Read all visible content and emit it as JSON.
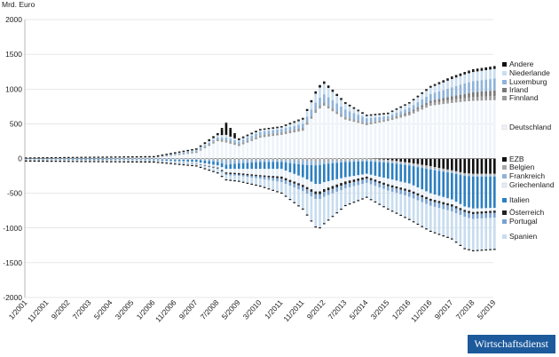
{
  "badge": "Wirtschaftsdienst",
  "chart_data": {
    "type": "area",
    "ylabel": "Mrd. Euro",
    "ylim": [
      -2000,
      2000
    ],
    "yticks": [
      2000,
      1500,
      1000,
      500,
      0,
      -500,
      -1000,
      -1500,
      -2000
    ],
    "xlabels": [
      "1/2001",
      "11/2001",
      "9/2002",
      "7/2003",
      "5/2004",
      "3/2005",
      "1/2006",
      "11/2006",
      "9/2007",
      "7/2008",
      "5/2009",
      "3/2010",
      "1/2011",
      "11/2011",
      "9/2012",
      "7/2013",
      "5/2014",
      "3/2015",
      "1/2016",
      "11/2016",
      "9/2017",
      "7/2018",
      "5/2019"
    ],
    "grid": true,
    "legend_position": "right",
    "legend_groups": [
      {
        "side": "positive",
        "entries": [
          {
            "name": "Andere",
            "color": "#111111"
          },
          {
            "name": "Niederlande",
            "color": "#c9ddef"
          },
          {
            "name": "Luxemburg",
            "color": "#8fb3d9"
          },
          {
            "name": "Irland",
            "color": "#7a7a7a"
          },
          {
            "name": "Finnland",
            "color": "#9a9a9a"
          },
          {
            "name": "Deutschland",
            "color": "#eef4fa"
          }
        ]
      },
      {
        "side": "negative",
        "entries": [
          {
            "name": "EZB",
            "color": "#111111"
          },
          {
            "name": "Belgien",
            "color": "#a8a8a8"
          },
          {
            "name": "Frankreich",
            "color": "#8fb3d9"
          },
          {
            "name": "Griechenland",
            "color": "#e5eef7"
          },
          {
            "name": "Italien",
            "color": "#2c7fc0"
          },
          {
            "name": "Österreich",
            "color": "#222222"
          },
          {
            "name": "Portugal",
            "color": "#7aa2d1"
          },
          {
            "name": "Spanien",
            "color": "#c7dcef"
          }
        ]
      }
    ],
    "series_positive": {
      "x": [
        "1/2001",
        "1/2006",
        "9/2007",
        "7/2008",
        "11/2008",
        "5/2009",
        "3/2010",
        "1/2011",
        "11/2011",
        "6/2012",
        "9/2012",
        "7/2013",
        "5/2014",
        "3/2015",
        "1/2016",
        "11/2016",
        "9/2017",
        "3/2018",
        "7/2018",
        "5/2019"
      ],
      "Deutschland": [
        0,
        10,
        80,
        250,
        230,
        180,
        300,
        340,
        400,
        700,
        760,
        560,
        480,
        540,
        620,
        760,
        800,
        820,
        830,
        840
      ],
      "Finnland": [
        0,
        2,
        10,
        20,
        25,
        20,
        30,
        30,
        35,
        40,
        40,
        30,
        25,
        25,
        30,
        40,
        45,
        50,
        55,
        60
      ],
      "Irland": [
        0,
        2,
        5,
        5,
        5,
        5,
        5,
        5,
        5,
        5,
        5,
        5,
        5,
        5,
        20,
        30,
        50,
        60,
        70,
        80
      ],
      "Luxemburg": [
        0,
        3,
        20,
        30,
        40,
        40,
        50,
        50,
        60,
        110,
        120,
        110,
        70,
        40,
        60,
        100,
        130,
        150,
        160,
        170
      ],
      "Niederlande": [
        0,
        3,
        10,
        30,
        40,
        20,
        20,
        20,
        60,
        140,
        150,
        80,
        30,
        30,
        60,
        90,
        120,
        130,
        130,
        140
      ],
      "Andere": [
        0,
        0,
        5,
        15,
        160,
        10,
        5,
        5,
        10,
        20,
        20,
        10,
        5,
        5,
        5,
        10,
        20,
        20,
        25,
        25
      ]
    },
    "series_negative": {
      "x": [
        "1/2001",
        "1/2006",
        "9/2007",
        "7/2008",
        "11/2008",
        "5/2009",
        "3/2010",
        "1/2011",
        "11/2011",
        "6/2012",
        "9/2012",
        "7/2013",
        "5/2014",
        "3/2015",
        "1/2016",
        "11/2016",
        "9/2017",
        "3/2018",
        "7/2018",
        "5/2019"
      ],
      "EZB": [
        0,
        0,
        0,
        0,
        0,
        0,
        0,
        0,
        0,
        0,
        0,
        0,
        0,
        -20,
        -60,
        -110,
        -170,
        -210,
        -220,
        -220
      ],
      "Belgien": [
        -5,
        -5,
        -10,
        -20,
        -30,
        -20,
        -20,
        -20,
        -30,
        -40,
        -40,
        -30,
        -20,
        -20,
        -20,
        -30,
        -20,
        -20,
        -20,
        -20
      ],
      "Frankreich": [
        -5,
        -10,
        -10,
        -30,
        -60,
        -50,
        -30,
        -30,
        -60,
        -60,
        -40,
        -20,
        -20,
        -20,
        -20,
        -20,
        -20,
        -20,
        -20,
        -20
      ],
      "Italien": [
        -5,
        -10,
        -30,
        -50,
        -60,
        -80,
        -100,
        -100,
        -180,
        -280,
        -260,
        -220,
        -180,
        -230,
        -260,
        -340,
        -380,
        -440,
        -460,
        -450
      ],
      "Griechenland": [
        -5,
        -10,
        -20,
        -30,
        -50,
        -60,
        -90,
        -110,
        -110,
        -110,
        -100,
        -60,
        -40,
        -80,
        -90,
        -80,
        -70,
        -50,
        -50,
        -40
      ],
      "Österreich": [
        -2,
        -2,
        -5,
        -10,
        -20,
        -20,
        -20,
        -30,
        -30,
        -40,
        -40,
        -40,
        -30,
        -30,
        -30,
        -30,
        -30,
        -30,
        -30,
        -30
      ],
      "Portugal": [
        -2,
        -2,
        -5,
        -10,
        -20,
        -20,
        -30,
        -50,
        -60,
        -70,
        -70,
        -60,
        -60,
        -60,
        -70,
        -70,
        -70,
        -70,
        -70,
        -70
      ],
      "Spanien": [
        -5,
        -5,
        -20,
        -50,
        -60,
        -70,
        -100,
        -150,
        -250,
        -420,
        -380,
        -240,
        -200,
        -260,
        -320,
        -360,
        -390,
        -450,
        -450,
        -450
      ]
    }
  }
}
